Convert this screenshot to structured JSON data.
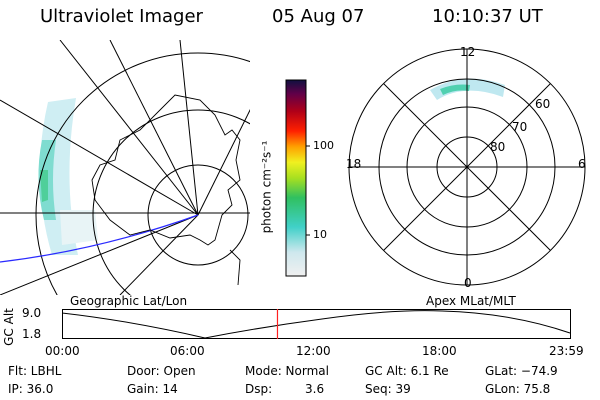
{
  "header": {
    "title": "Ultraviolet Imager",
    "date": "05 Aug 07",
    "time": "10:10:37 UT"
  },
  "colorbar": {
    "label": "photon cm⁻²s⁻¹",
    "ticks": [
      "100",
      "10"
    ]
  },
  "polar": {
    "mlt_labels": {
      "top": "12",
      "left": "18",
      "right": "6",
      "bottom": "0"
    },
    "lat_labels": [
      "60",
      "70",
      "80"
    ]
  },
  "projections": {
    "left": "Geographic Lat/Lon",
    "right": "Apex MLat/MLT"
  },
  "timeline": {
    "ylabel": "GC Alt",
    "yticks": [
      "9.0",
      "1.8"
    ],
    "xticks": [
      "00:00",
      "06:00",
      "12:00",
      "18:00",
      "23:59"
    ],
    "marker_hours": 10.18
  },
  "status": {
    "flt": "Flt: LBHL",
    "ip": "IP: 36.0",
    "door": "Door: Open",
    "gain": "Gain: 14",
    "mode": "Mode: Normal",
    "dsp_label": "Dsp:",
    "dsp_value": "3.6",
    "gc_alt": "GC Alt: 6.1 Re",
    "seq": "Seq: 39",
    "glat": "GLat: −74.9",
    "glon": "GLon:  75.8"
  }
}
